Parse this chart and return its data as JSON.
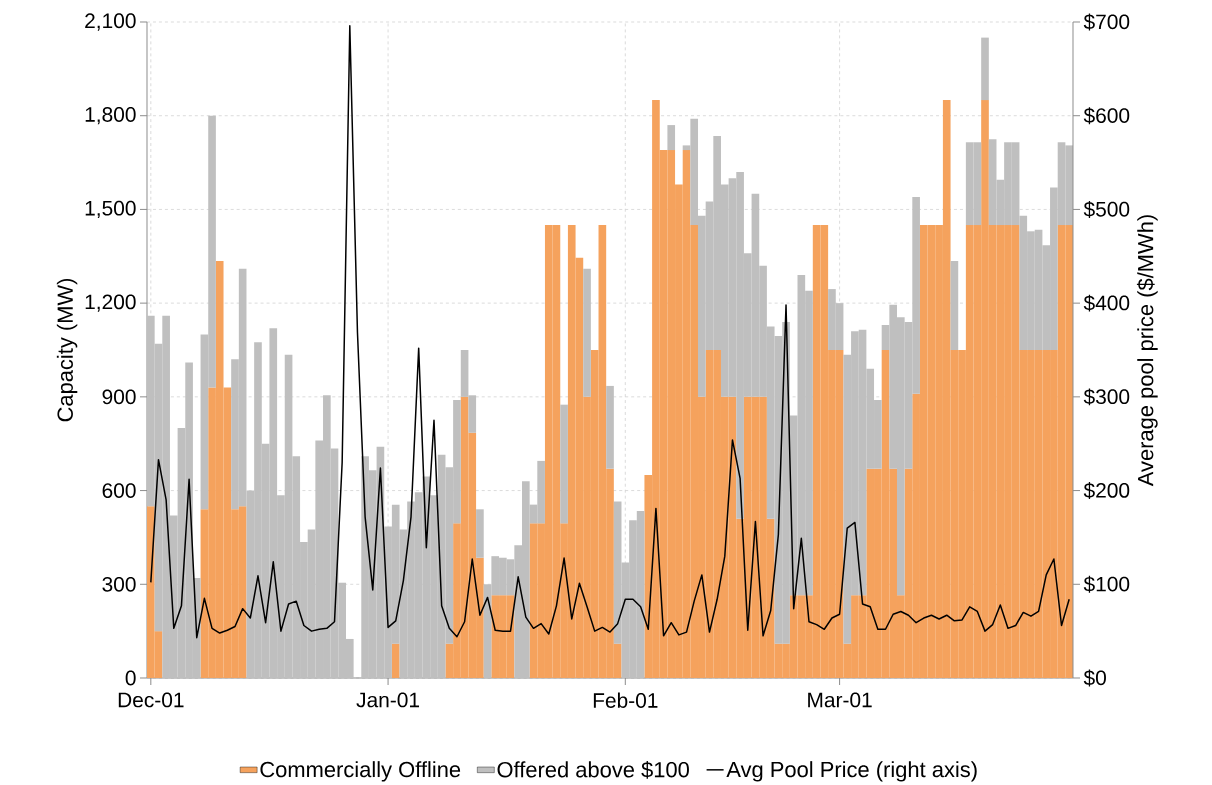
{
  "chart_data": {
    "type": "bar",
    "stacked": true,
    "grid": true,
    "legend": "bottom",
    "ylabel": "Capacity (MW)",
    "y2label": "Average pool price ($/MWh)",
    "categories": [
      "Dec-01",
      null,
      null,
      null,
      null,
      null,
      null,
      null,
      null,
      null,
      null,
      null,
      null,
      null,
      null,
      null,
      null,
      null,
      null,
      null,
      null,
      null,
      null,
      null,
      null,
      null,
      null,
      null,
      null,
      null,
      null,
      "Jan-01",
      null,
      null,
      null,
      null,
      null,
      null,
      null,
      null,
      null,
      null,
      null,
      null,
      null,
      null,
      null,
      null,
      null,
      null,
      null,
      null,
      null,
      null,
      null,
      null,
      null,
      null,
      null,
      null,
      null,
      null,
      "Feb-01",
      null,
      null,
      null,
      null,
      null,
      null,
      null,
      null,
      null,
      null,
      null,
      null,
      null,
      null,
      null,
      null,
      null,
      null,
      null,
      null,
      null,
      null,
      null,
      null,
      null,
      null,
      null,
      "Mar-01",
      null,
      null,
      null,
      null,
      null,
      null,
      null,
      null,
      null,
      null,
      null,
      null,
      null,
      null,
      null,
      null,
      null,
      null,
      null,
      null,
      null,
      null,
      null,
      null,
      null,
      null,
      null,
      null,
      null,
      null
    ],
    "ylim": [
      0,
      2100
    ],
    "yticks": [
      {
        "value": 0,
        "label": "0"
      },
      {
        "value": 300,
        "label": "300"
      },
      {
        "value": 600,
        "label": "600"
      },
      {
        "value": 900,
        "label": "900"
      },
      {
        "value": 1200,
        "label": "1,200"
      },
      {
        "value": 1500,
        "label": "1,500"
      },
      {
        "value": 1800,
        "label": "1,800"
      },
      {
        "value": 2100,
        "label": "2,100"
      }
    ],
    "y2lim": [
      0,
      700
    ],
    "y2ticks": [
      {
        "value": 0,
        "label": "$0"
      },
      {
        "value": 100,
        "label": "$100"
      },
      {
        "value": 200,
        "label": "$200"
      },
      {
        "value": 300,
        "label": "$300"
      },
      {
        "value": 400,
        "label": "$400"
      },
      {
        "value": 500,
        "label": "$500"
      },
      {
        "value": 600,
        "label": "$600"
      },
      {
        "value": 700,
        "label": "$700"
      }
    ],
    "series": [
      {
        "name": "Commercially Offline",
        "color": "#f5a25d",
        "values": [
          550,
          150,
          0,
          0,
          0,
          0,
          0,
          540,
          930,
          1335,
          930,
          540,
          550,
          0,
          0,
          0,
          0,
          0,
          0,
          0,
          0,
          0,
          0,
          0,
          0,
          0,
          0,
          0,
          0,
          0,
          0,
          0,
          110,
          0,
          0,
          0,
          0,
          0,
          0,
          110,
          495,
          900,
          785,
          385,
          0,
          265,
          265,
          265,
          0,
          0,
          495,
          495,
          1450,
          1450,
          495,
          1450,
          1345,
          900,
          1050,
          1450,
          670,
          110,
          0,
          0,
          0,
          650,
          1850,
          1690,
          1690,
          1580,
          1690,
          1450,
          900,
          1050,
          1050,
          900,
          900,
          510,
          900,
          900,
          900,
          510,
          110,
          110,
          265,
          265,
          265,
          1450,
          1450,
          1050,
          1050,
          110,
          265,
          265,
          670,
          670,
          1050,
          670,
          265,
          670,
          910,
          1450,
          1450,
          1450,
          1850,
          1050,
          1050,
          1450,
          1450,
          1850,
          1450,
          1450,
          1450,
          1450,
          1050,
          1050,
          1050,
          1050,
          1050,
          1450,
          1450
        ]
      },
      {
        "name": "Offered above $100",
        "color": "#bfbfbf",
        "values": [
          610,
          920,
          1160,
          520,
          800,
          1010,
          320,
          560,
          870,
          0,
          0,
          480,
          760,
          600,
          1075,
          750,
          1120,
          585,
          1035,
          710,
          435,
          475,
          760,
          905,
          735,
          305,
          125,
          0,
          710,
          665,
          740,
          485,
          445,
          475,
          565,
          595,
          645,
          585,
          715,
          565,
          395,
          150,
          120,
          155,
          300,
          125,
          120,
          115,
          425,
          630,
          60,
          200,
          0,
          0,
          380,
          0,
          0,
          410,
          0,
          0,
          265,
          455,
          370,
          505,
          535,
          0,
          0,
          0,
          80,
          0,
          15,
          340,
          580,
          475,
          685,
          680,
          700,
          1110,
          460,
          650,
          420,
          615,
          985,
          1030,
          575,
          1025,
          975,
          0,
          0,
          195,
          150,
          925,
          845,
          850,
          320,
          220,
          80,
          525,
          890,
          470,
          630,
          0,
          0,
          0,
          0,
          285,
          0,
          265,
          265,
          200,
          275,
          145,
          265,
          265,
          430,
          380,
          385,
          335,
          520,
          265,
          255
        ]
      },
      {
        "name": "Avg Pool Price (right axis)",
        "type": "line",
        "axis": "y2",
        "color": "#000000",
        "values": [
          102,
          233,
          190,
          53,
          77,
          212,
          43,
          85,
          53,
          48,
          51,
          55,
          74,
          64,
          109,
          59,
          124,
          50,
          79,
          82,
          56,
          50,
          52,
          53,
          60,
          230,
          696,
          369,
          172,
          94,
          224,
          54,
          61,
          104,
          172,
          352,
          139,
          275,
          77,
          53,
          44,
          60,
          127,
          67,
          86,
          51,
          50,
          50,
          108,
          65,
          53,
          58,
          47,
          77,
          128,
          63,
          101,
          76,
          50,
          54,
          49,
          58,
          84,
          84,
          76,
          52,
          181,
          45,
          59,
          46,
          49,
          82,
          110,
          49,
          84,
          130,
          254,
          213,
          51,
          167,
          45,
          72,
          153,
          398,
          74,
          149,
          60,
          57,
          52,
          64,
          68,
          160,
          166,
          79,
          76,
          52,
          52,
          68,
          71,
          67,
          59,
          64,
          67,
          63,
          67,
          61,
          62,
          76,
          71,
          50,
          57,
          78,
          53,
          56,
          70,
          66,
          71,
          110,
          127,
          56,
          84
        ]
      }
    ]
  }
}
